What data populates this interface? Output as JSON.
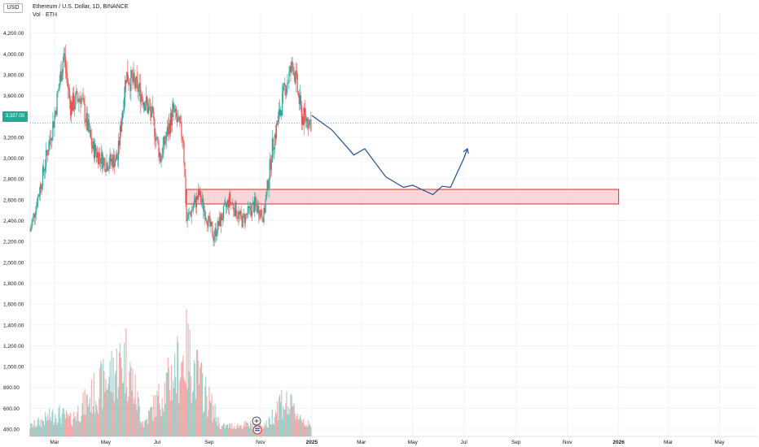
{
  "header": {
    "currency": "USD",
    "symbol_line": "Ethereum / U.S. Dollar, 1D, BINANCE",
    "volume_line": "Vol · ETH"
  },
  "current_price_label": "3,337.00",
  "colors": {
    "up": "#26a69a",
    "down": "#ef5350",
    "projection": "#1c4f8c",
    "zone_fill": "#f8c8cc",
    "zone_stroke": "#d32f2f",
    "current_price": "#22ab94"
  },
  "icons": [
    "plus-circle-icon",
    "flag-icon"
  ],
  "chart_data": {
    "type": "candlestick",
    "y_axis_ticks": [
      "4,200.00",
      "4,000.00",
      "3,800.00",
      "3,600.00",
      "3,400.00",
      "3,200.00",
      "3,000.00",
      "2,800.00",
      "2,600.00",
      "2,400.00",
      "2,200.00",
      "2,000.00",
      "1,800.00",
      "1,600.00",
      "1,400.00",
      "1,200.00",
      "1,000.00",
      "800.00",
      "600.00",
      "400.00"
    ],
    "y_axis_tick_values": [
      4200,
      4000,
      3800,
      3600,
      3400,
      3200,
      3000,
      2800,
      2600,
      2400,
      2200,
      2000,
      1800,
      1600,
      1400,
      1200,
      1000,
      800,
      600,
      400
    ],
    "ylim": [
      330,
      4400
    ],
    "x_axis_ticks": [
      {
        "label": "Mar",
        "date": "2024-03-01"
      },
      {
        "label": "May",
        "date": "2024-05-01"
      },
      {
        "label": "Jul",
        "date": "2024-07-01"
      },
      {
        "label": "Sep",
        "date": "2024-09-01"
      },
      {
        "label": "Nov",
        "date": "2024-11-01"
      },
      {
        "label": "2025",
        "date": "2025-01-01",
        "bold": true
      },
      {
        "label": "Mar",
        "date": "2025-03-01"
      },
      {
        "label": "May",
        "date": "2025-05-01"
      },
      {
        "label": "Jul",
        "date": "2025-07-01"
      },
      {
        "label": "Sep",
        "date": "2025-09-01"
      },
      {
        "label": "Nov",
        "date": "2025-11-01"
      },
      {
        "label": "2026",
        "date": "2026-01-01",
        "bold": true
      },
      {
        "label": "Mar",
        "date": "2026-03-01"
      },
      {
        "label": "May",
        "date": "2026-05-01"
      }
    ],
    "x_range": [
      "2024-02-01",
      "2026-06-15"
    ],
    "price_path": [
      {
        "date": "2024-02-01",
        "close": 2300
      },
      {
        "date": "2024-02-15",
        "close": 2800
      },
      {
        "date": "2024-03-01",
        "close": 3400
      },
      {
        "date": "2024-03-12",
        "close": 4000
      },
      {
        "date": "2024-03-20",
        "close": 3500
      },
      {
        "date": "2024-04-01",
        "close": 3600
      },
      {
        "date": "2024-04-15",
        "close": 3100
      },
      {
        "date": "2024-05-01",
        "close": 2950
      },
      {
        "date": "2024-05-15",
        "close": 3000
      },
      {
        "date": "2024-05-25",
        "close": 3800
      },
      {
        "date": "2024-06-10",
        "close": 3650
      },
      {
        "date": "2024-06-25",
        "close": 3400
      },
      {
        "date": "2024-07-05",
        "close": 3000
      },
      {
        "date": "2024-07-20",
        "close": 3450
      },
      {
        "date": "2024-08-01",
        "close": 3200
      },
      {
        "date": "2024-08-05",
        "close": 2400
      },
      {
        "date": "2024-08-20",
        "close": 2650
      },
      {
        "date": "2024-09-06",
        "close": 2250
      },
      {
        "date": "2024-09-25",
        "close": 2600
      },
      {
        "date": "2024-10-10",
        "close": 2400
      },
      {
        "date": "2024-10-25",
        "close": 2550
      },
      {
        "date": "2024-11-05",
        "close": 2450
      },
      {
        "date": "2024-11-15",
        "close": 3100
      },
      {
        "date": "2024-12-01",
        "close": 3700
      },
      {
        "date": "2024-12-10",
        "close": 3900
      },
      {
        "date": "2024-12-20",
        "close": 3400
      },
      {
        "date": "2024-12-31",
        "close": 3350
      }
    ],
    "volume_path": [
      {
        "date": "2024-02-01",
        "value": 440
      },
      {
        "date": "2024-03-05",
        "value": 600
      },
      {
        "date": "2024-03-20",
        "value": 520
      },
      {
        "date": "2024-05-25",
        "value": 1250
      },
      {
        "date": "2024-06-15",
        "value": 470
      },
      {
        "date": "2024-08-05",
        "value": 1320
      },
      {
        "date": "2024-09-15",
        "value": 440
      },
      {
        "date": "2024-11-10",
        "value": 470
      },
      {
        "date": "2024-11-25",
        "value": 760
      },
      {
        "date": "2024-12-10",
        "value": 640
      },
      {
        "date": "2024-12-31",
        "value": 430
      }
    ],
    "projection": [
      {
        "date": "2025-01-01",
        "price": 3410
      },
      {
        "date": "2025-01-25",
        "price": 3270
      },
      {
        "date": "2025-02-20",
        "price": 3030
      },
      {
        "date": "2025-03-05",
        "price": 3090
      },
      {
        "date": "2025-03-30",
        "price": 2820
      },
      {
        "date": "2025-04-20",
        "price": 2720
      },
      {
        "date": "2025-05-01",
        "price": 2740
      },
      {
        "date": "2025-05-25",
        "price": 2650
      },
      {
        "date": "2025-06-05",
        "price": 2730
      },
      {
        "date": "2025-06-15",
        "price": 2720
      },
      {
        "date": "2025-07-01",
        "price": 3000
      },
      {
        "date": "2025-07-05",
        "price": 3090
      }
    ],
    "support_zone": {
      "start": "2024-08-05",
      "end": "2026-01-01",
      "low": 2560,
      "high": 2700
    },
    "current_price": 3337
  }
}
